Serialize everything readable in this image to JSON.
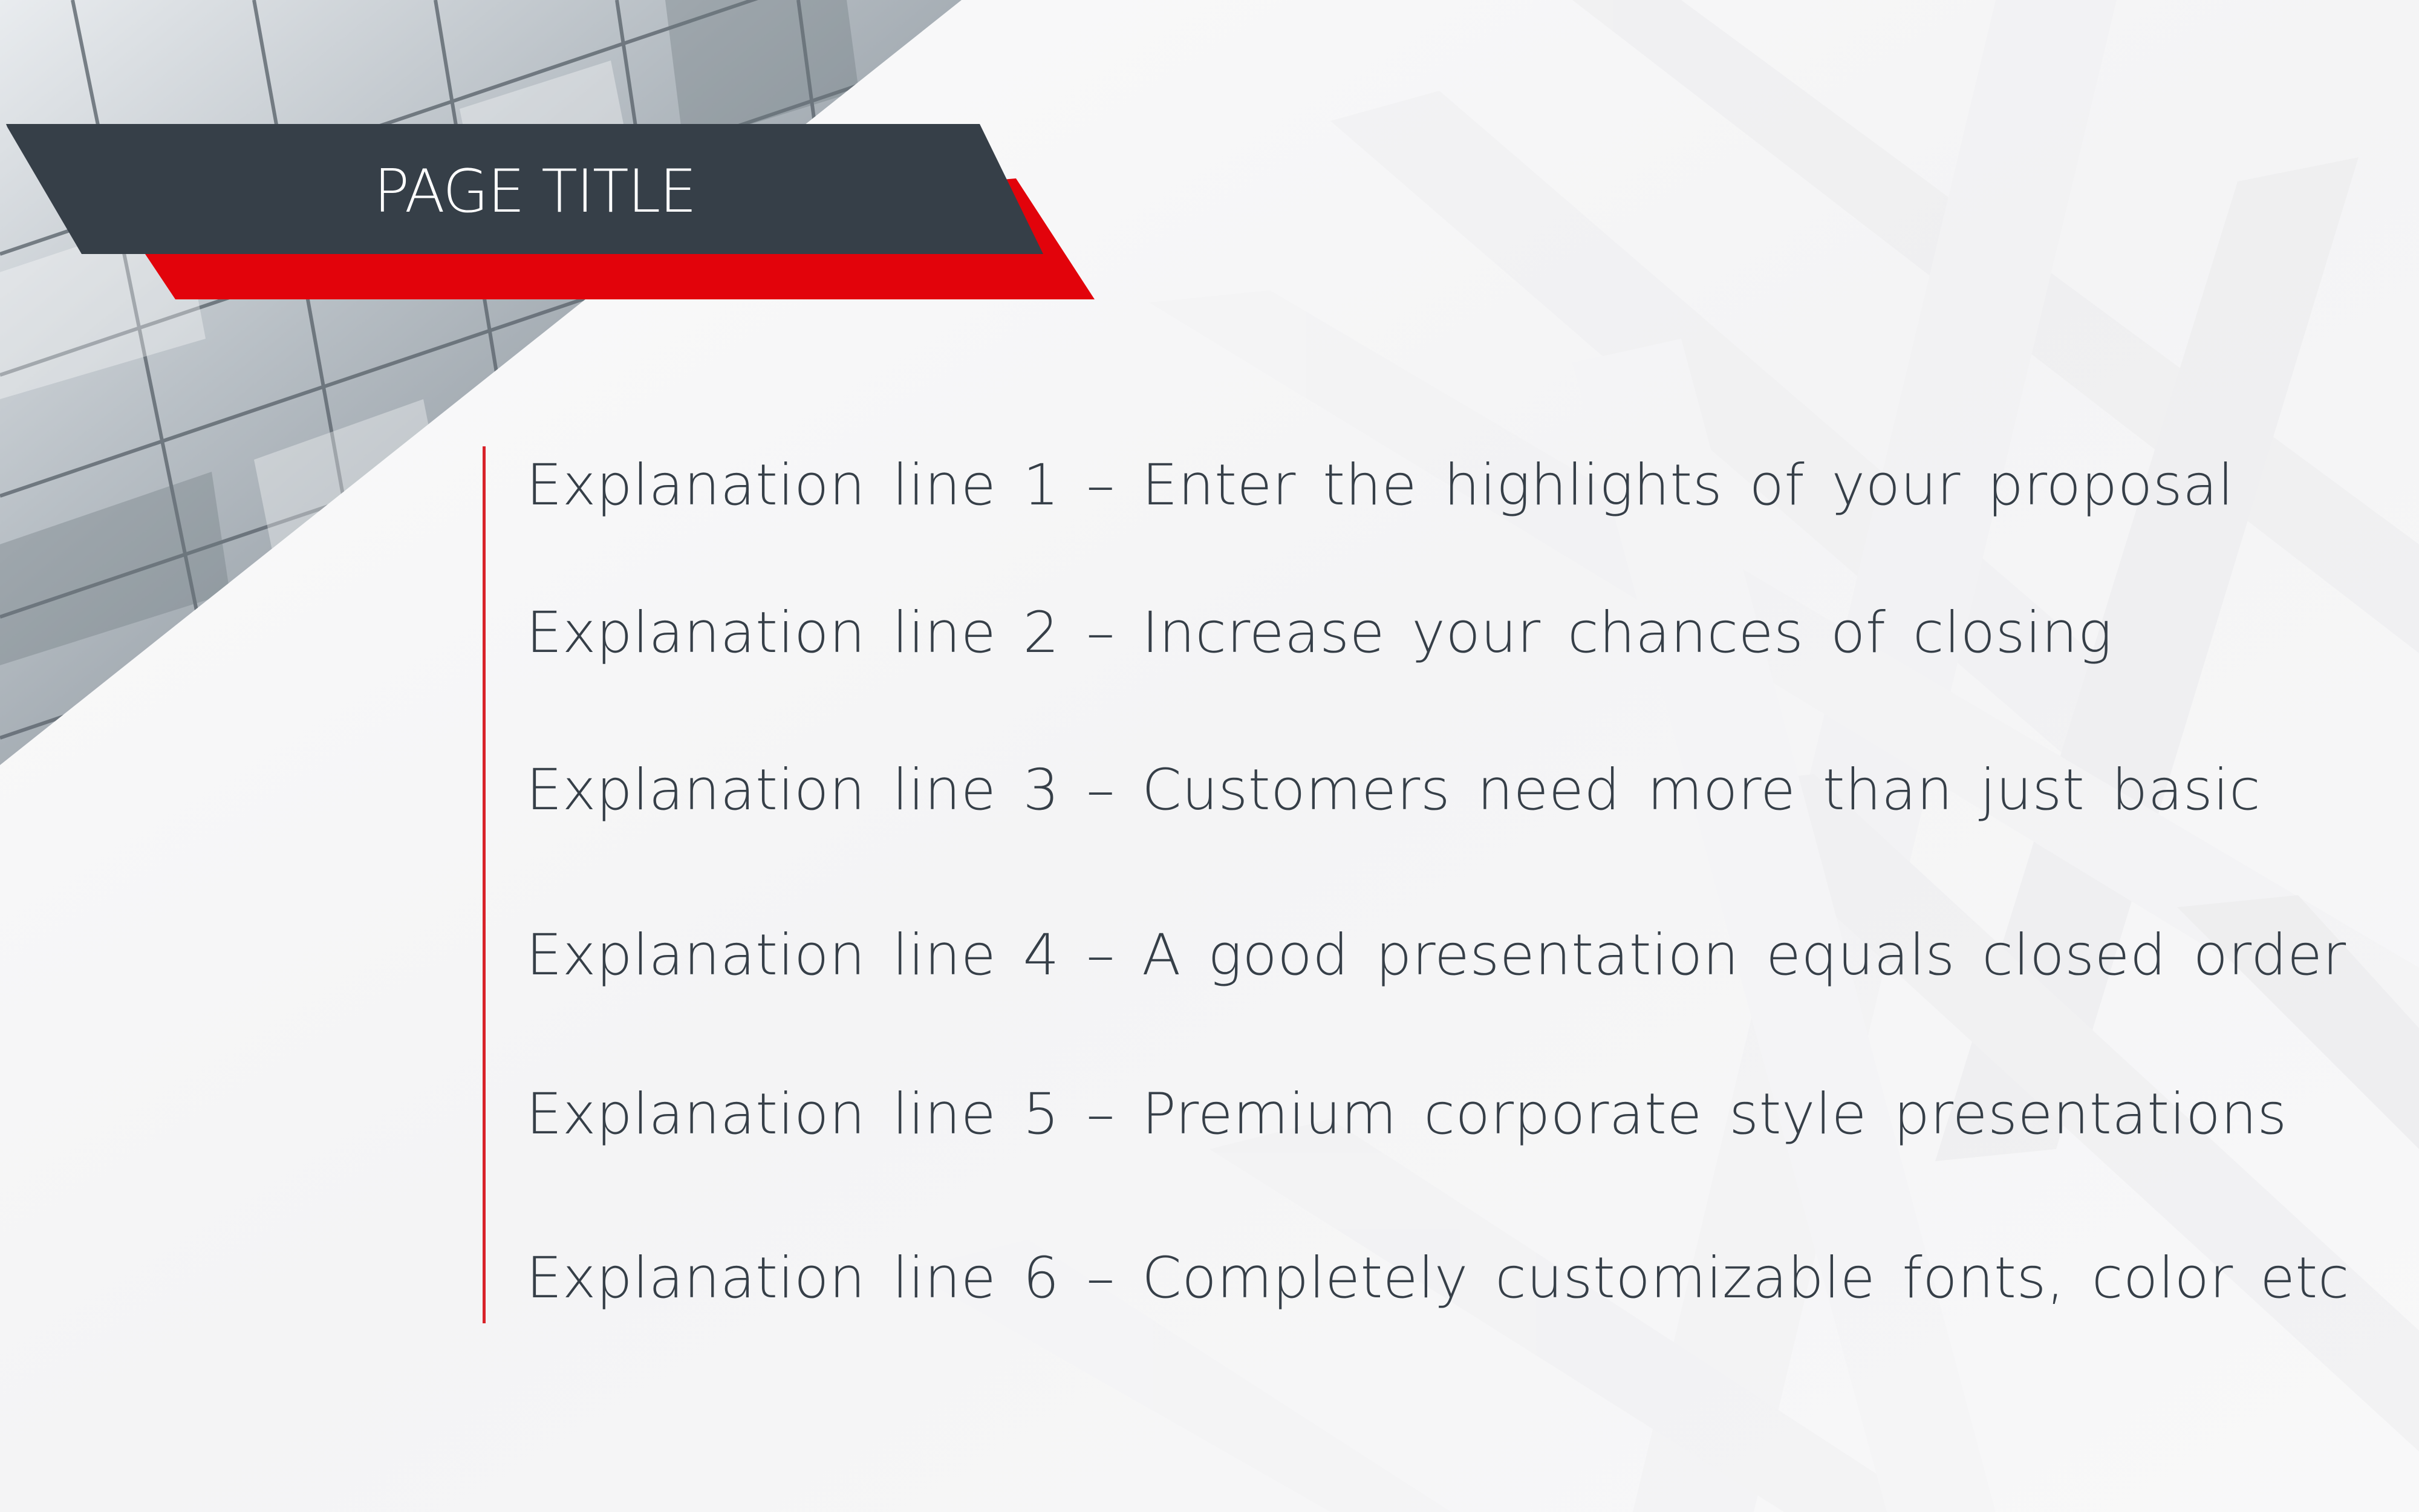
{
  "slide": {
    "title": "PAGE TITLE",
    "lines": [
      "Explanation line 1 – Enter the highlights of your proposal",
      "Explanation line 2 – Increase your chances of closing",
      "Explanation line 3 – Customers need more than just basic",
      "Explanation line 4 – A good presentation equals closed order",
      "Explanation line 5 – Premium corporate style presentations",
      "Explanation line 6 – Completely customizable fonts, color etc"
    ]
  },
  "colors": {
    "banner_dark": "#363f48",
    "banner_red": "#e2030b",
    "accent_line": "#d8232a",
    "body_text": "#363f48",
    "title_text": "#ffffff",
    "background": "#f7f7f8"
  }
}
